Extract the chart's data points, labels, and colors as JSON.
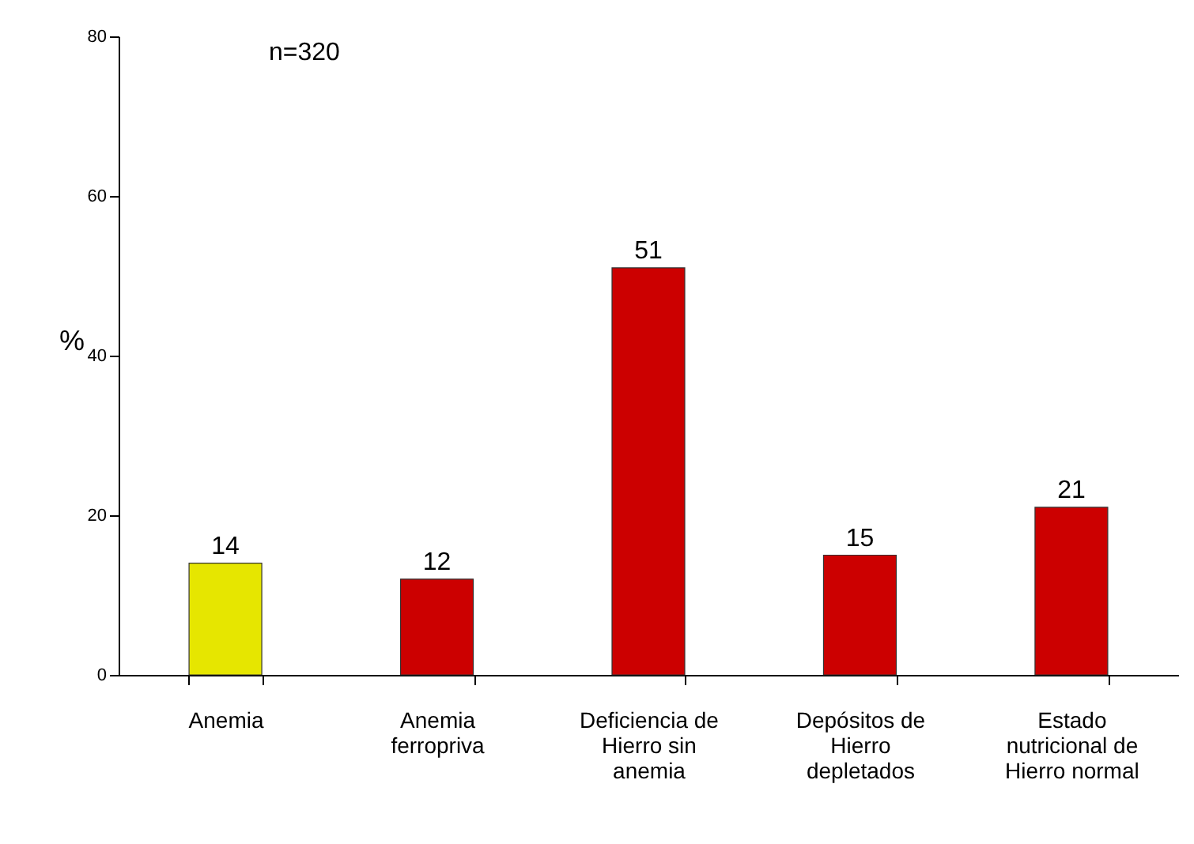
{
  "chart_data": {
    "type": "bar",
    "categories": [
      "Anemia",
      "Anemia ferropriva",
      "Deficiencia de Hierro sin anemia",
      "Depósitos de Hierro depletados",
      "Estado nutricional de Hierro normal"
    ],
    "values": [
      14,
      12,
      51,
      15,
      21
    ],
    "colors": [
      "#e6e600",
      "#cc0000",
      "#cc0000",
      "#cc0000",
      "#cc0000"
    ],
    "ylabel": "%",
    "ylim": [
      0,
      80
    ],
    "yticks": [
      0,
      20,
      40,
      60,
      80
    ],
    "data_labels": true,
    "grid": false,
    "annotations": [
      "n=320"
    ]
  }
}
